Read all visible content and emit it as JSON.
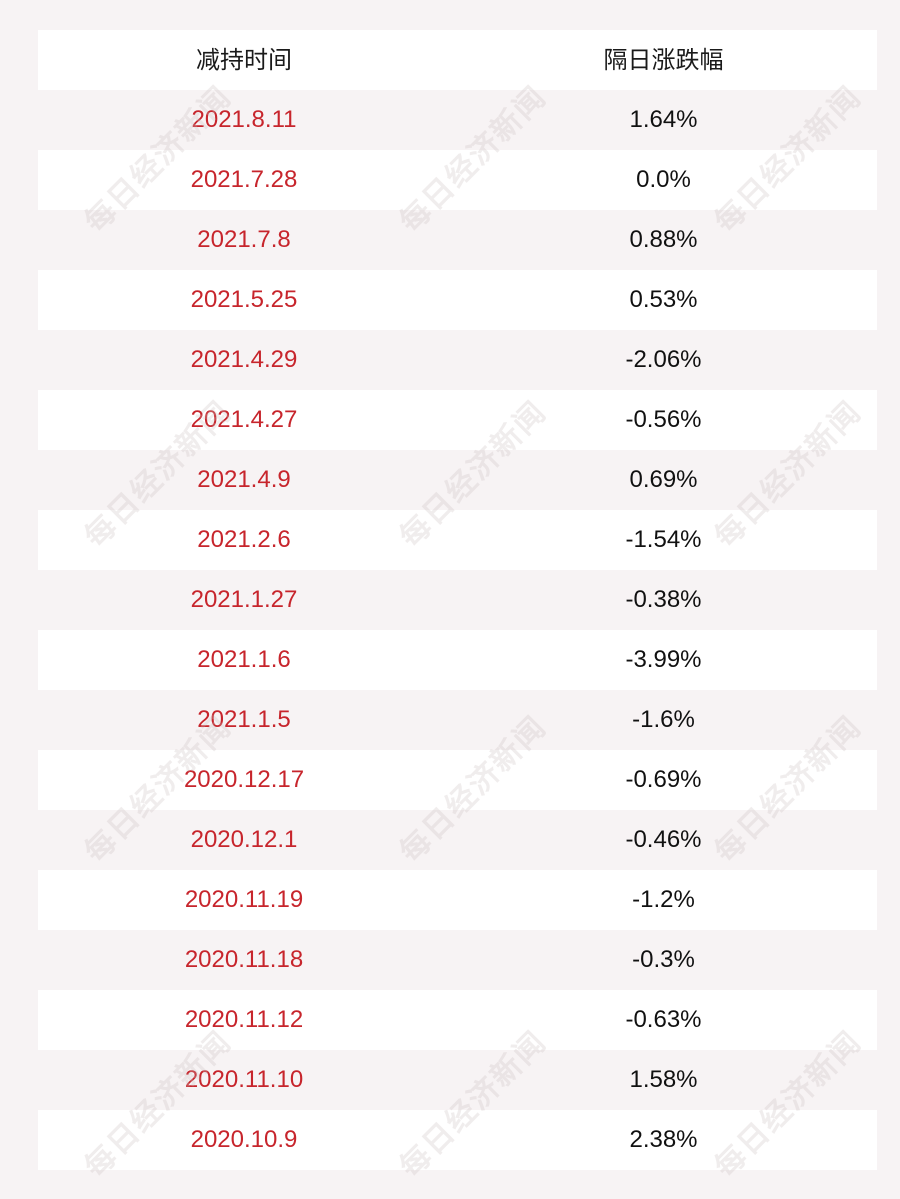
{
  "table": {
    "headers": [
      "减持时间",
      "隔日涨跌幅"
    ],
    "rows": [
      {
        "date": "2021.8.11",
        "change": "1.64%"
      },
      {
        "date": "2021.7.28",
        "change": "0.0%"
      },
      {
        "date": "2021.7.8",
        "change": "0.88%"
      },
      {
        "date": "2021.5.25",
        "change": "0.53%"
      },
      {
        "date": "2021.4.29",
        "change": "-2.06%"
      },
      {
        "date": "2021.4.27",
        "change": "-0.56%"
      },
      {
        "date": "2021.4.9",
        "change": "0.69%"
      },
      {
        "date": "2021.2.6",
        "change": "-1.54%"
      },
      {
        "date": "2021.1.27",
        "change": "-0.38%"
      },
      {
        "date": "2021.1.6",
        "change": "-3.99%"
      },
      {
        "date": "2021.1.5",
        "change": "-1.6%"
      },
      {
        "date": "2020.12.17",
        "change": "-0.69%"
      },
      {
        "date": "2020.12.1",
        "change": "-0.46%"
      },
      {
        "date": "2020.11.19",
        "change": "-1.2%"
      },
      {
        "date": "2020.11.18",
        "change": "-0.3%"
      },
      {
        "date": "2020.11.12",
        "change": "-0.63%"
      },
      {
        "date": "2020.11.10",
        "change": "1.58%"
      },
      {
        "date": "2020.10.9",
        "change": "2.38%"
      }
    ]
  },
  "watermark": {
    "text": "每日经济新闻"
  },
  "colors": {
    "date_text": "#c7252c",
    "value_text": "#111111",
    "row_white": "#ffffff",
    "row_tint": "#f7f3f4"
  }
}
